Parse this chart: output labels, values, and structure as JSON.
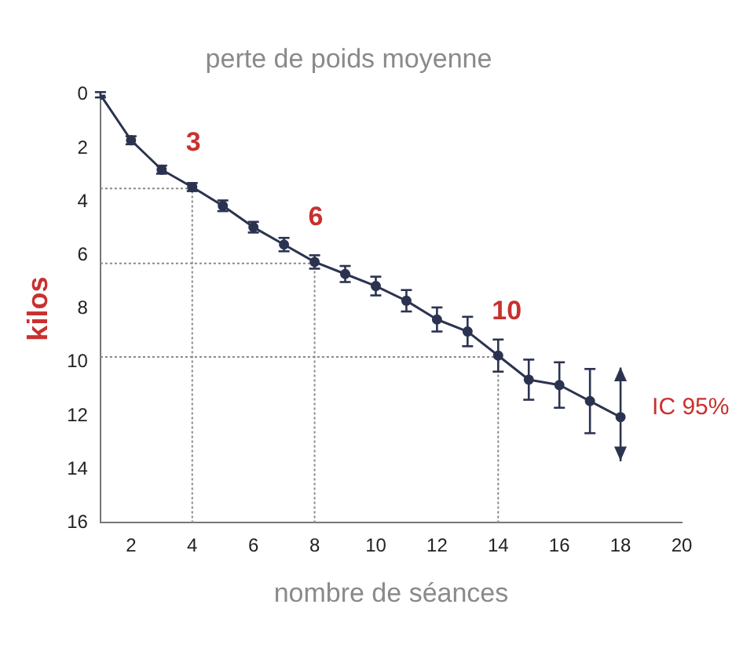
{
  "chart_data": {
    "type": "line",
    "title": "perte de poids moyenne",
    "xlabel": "nombre de séances",
    "ylabel": "kilos",
    "x": [
      1,
      2,
      3,
      4,
      5,
      6,
      7,
      8,
      9,
      10,
      11,
      12,
      13,
      14,
      15,
      16,
      17,
      18
    ],
    "series": [
      {
        "color": "#2b3350",
        "values": [
          0,
          1.7,
          2.8,
          3.45,
          4.15,
          4.95,
          5.6,
          6.25,
          6.7,
          7.15,
          7.7,
          8.4,
          8.85,
          9.75,
          10.65,
          10.85,
          11.45,
          12.05
        ],
        "errors": [
          0.1,
          0.15,
          0.15,
          0.15,
          0.2,
          0.2,
          0.25,
          0.25,
          0.3,
          0.35,
          0.4,
          0.45,
          0.55,
          0.6,
          0.75,
          0.85,
          1.2,
          [
            10.2,
            13.7
          ]
        ]
      }
    ],
    "xlim": [
      1,
      20
    ],
    "xticks": [
      2,
      4,
      6,
      8,
      10,
      12,
      14,
      16,
      18,
      20
    ],
    "ylim": [
      16,
      0
    ],
    "yticks": [
      0,
      2,
      4,
      6,
      8,
      10,
      12,
      14,
      16
    ],
    "marker": "circle",
    "line_style": "solid",
    "grid": false,
    "legend": false,
    "ref_lines": [
      {
        "axis": "x",
        "value": 4
      },
      {
        "axis": "y",
        "value": 3.5
      },
      {
        "axis": "x",
        "value": 8
      },
      {
        "axis": "y",
        "value": 6.3
      },
      {
        "axis": "x",
        "value": 14
      },
      {
        "axis": "y",
        "value": 9.8
      }
    ],
    "annotations": [
      {
        "text": "3",
        "x": 4,
        "y": 3.45
      },
      {
        "text": "6",
        "x": 8,
        "y": 6.25
      },
      {
        "text": "10",
        "x": 14,
        "y": 9.75
      },
      {
        "text": "IC 95%",
        "x": 18,
        "y": 12.05
      }
    ]
  }
}
